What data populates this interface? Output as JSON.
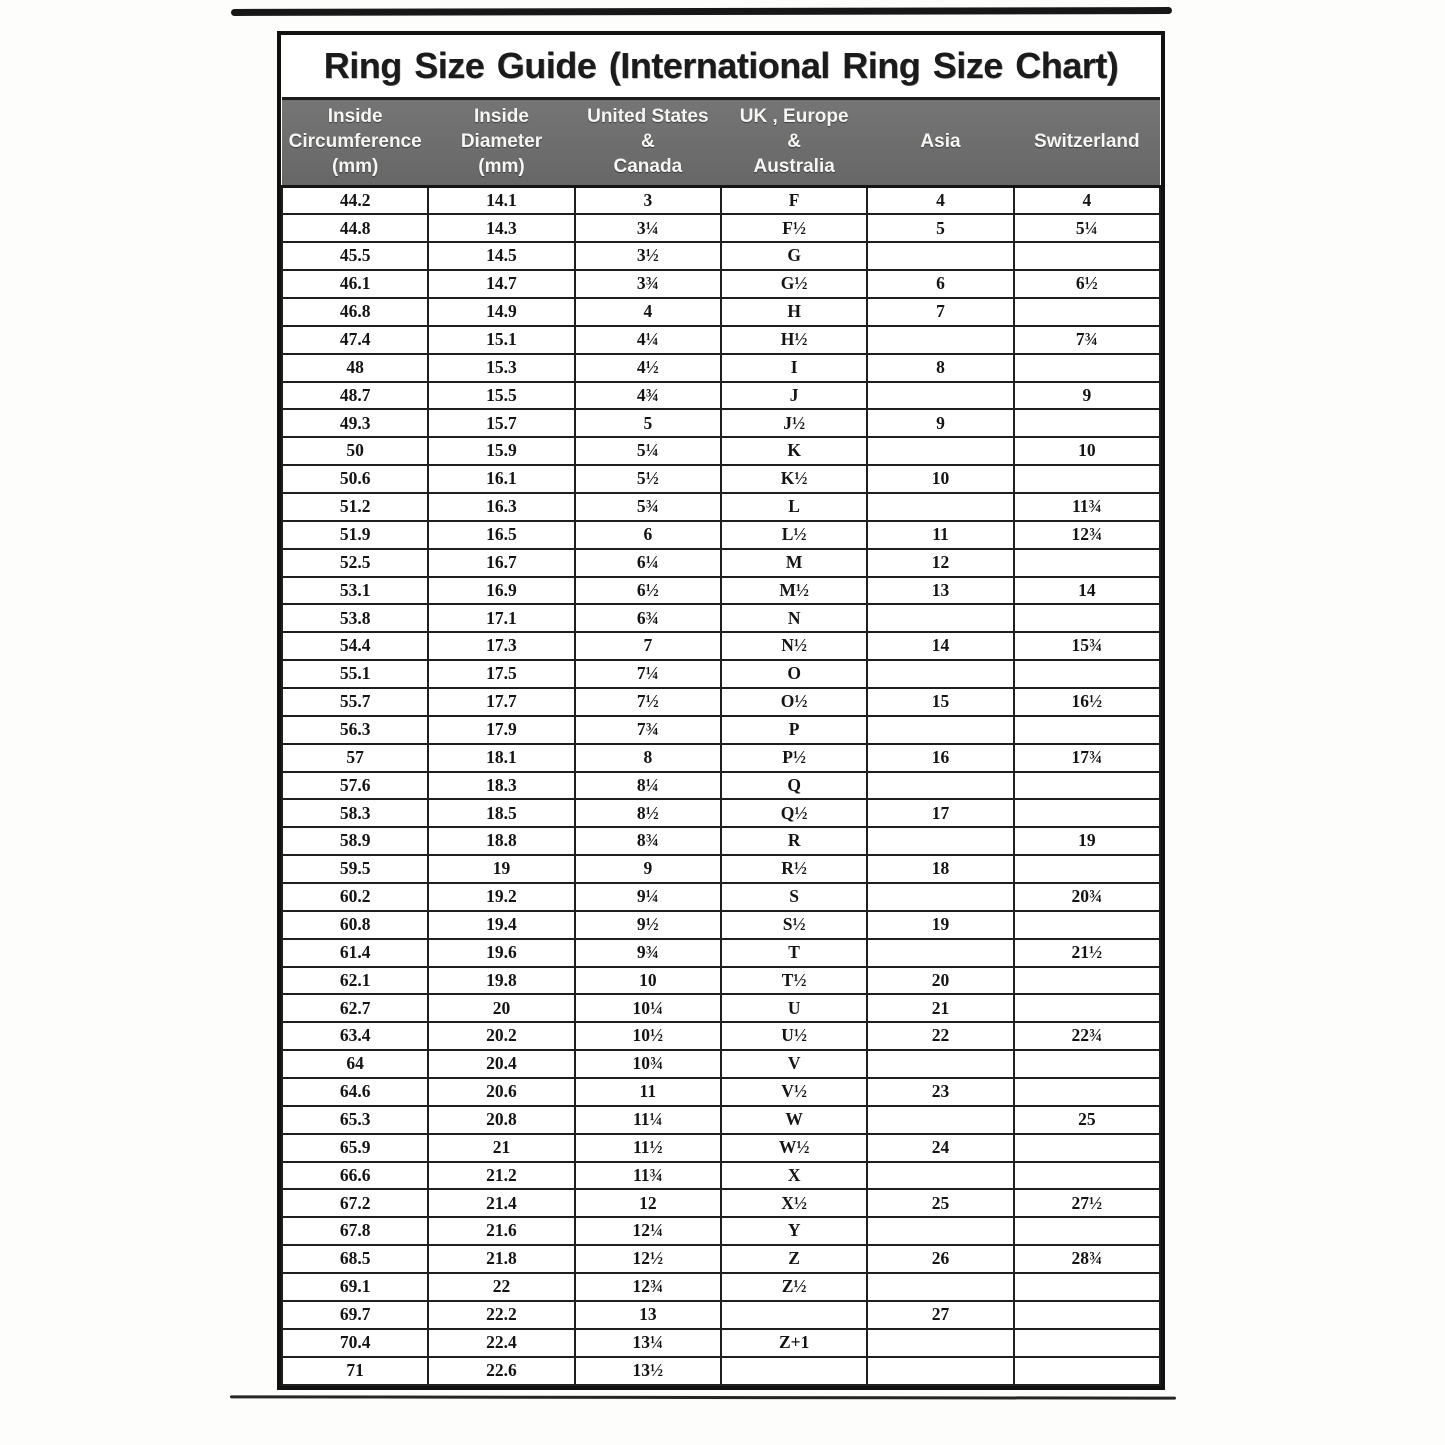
{
  "chart_data": {
    "type": "table",
    "title": "Ring Size Guide (International Ring Size Chart)",
    "columns": [
      "Inside\nCircumference\n(mm)",
      "Inside\nDiameter\n(mm)",
      "United States\n&\nCanada",
      "UK , Europe\n&\nAustralia",
      "Asia",
      "Switzerland"
    ],
    "rows": [
      [
        "44.2",
        "14.1",
        "3",
        "F",
        "4",
        "4"
      ],
      [
        "44.8",
        "14.3",
        "3¼",
        "F½",
        "5",
        "5¼"
      ],
      [
        "45.5",
        "14.5",
        "3½",
        "G",
        "",
        ""
      ],
      [
        "46.1",
        "14.7",
        "3¾",
        "G½",
        "6",
        "6½"
      ],
      [
        "46.8",
        "14.9",
        "4",
        "H",
        "7",
        ""
      ],
      [
        "47.4",
        "15.1",
        "4¼",
        "H½",
        "",
        "7¾"
      ],
      [
        "48",
        "15.3",
        "4½",
        "I",
        "8",
        ""
      ],
      [
        "48.7",
        "15.5",
        "4¾",
        "J",
        "",
        "9"
      ],
      [
        "49.3",
        "15.7",
        "5",
        "J½",
        "9",
        ""
      ],
      [
        "50",
        "15.9",
        "5¼",
        "K",
        "",
        "10"
      ],
      [
        "50.6",
        "16.1",
        "5½",
        "K½",
        "10",
        ""
      ],
      [
        "51.2",
        "16.3",
        "5¾",
        "L",
        "",
        "11¾"
      ],
      [
        "51.9",
        "16.5",
        "6",
        "L½",
        "11",
        "12¾"
      ],
      [
        "52.5",
        "16.7",
        "6¼",
        "M",
        "12",
        ""
      ],
      [
        "53.1",
        "16.9",
        "6½",
        "M½",
        "13",
        "14"
      ],
      [
        "53.8",
        "17.1",
        "6¾",
        "N",
        "",
        ""
      ],
      [
        "54.4",
        "17.3",
        "7",
        "N½",
        "14",
        "15¾"
      ],
      [
        "55.1",
        "17.5",
        "7¼",
        "O",
        "",
        ""
      ],
      [
        "55.7",
        "17.7",
        "7½",
        "O½",
        "15",
        "16½"
      ],
      [
        "56.3",
        "17.9",
        "7¾",
        "P",
        "",
        ""
      ],
      [
        "57",
        "18.1",
        "8",
        "P½",
        "16",
        "17¾"
      ],
      [
        "57.6",
        "18.3",
        "8¼",
        "Q",
        "",
        ""
      ],
      [
        "58.3",
        "18.5",
        "8½",
        "Q½",
        "17",
        ""
      ],
      [
        "58.9",
        "18.8",
        "8¾",
        "R",
        "",
        "19"
      ],
      [
        "59.5",
        "19",
        "9",
        "R½",
        "18",
        ""
      ],
      [
        "60.2",
        "19.2",
        "9¼",
        "S",
        "",
        "20¾"
      ],
      [
        "60.8",
        "19.4",
        "9½",
        "S½",
        "19",
        ""
      ],
      [
        "61.4",
        "19.6",
        "9¾",
        "T",
        "",
        "21½"
      ],
      [
        "62.1",
        "19.8",
        "10",
        "T½",
        "20",
        ""
      ],
      [
        "62.7",
        "20",
        "10¼",
        "U",
        "21",
        ""
      ],
      [
        "63.4",
        "20.2",
        "10½",
        "U½",
        "22",
        "22¾"
      ],
      [
        "64",
        "20.4",
        "10¾",
        "V",
        "",
        ""
      ],
      [
        "64.6",
        "20.6",
        "11",
        "V½",
        "23",
        ""
      ],
      [
        "65.3",
        "20.8",
        "11¼",
        "W",
        "",
        "25"
      ],
      [
        "65.9",
        "21",
        "11½",
        "W½",
        "24",
        ""
      ],
      [
        "66.6",
        "21.2",
        "11¾",
        "X",
        "",
        ""
      ],
      [
        "67.2",
        "21.4",
        "12",
        "X½",
        "25",
        "27½"
      ],
      [
        "67.8",
        "21.6",
        "12¼",
        "Y",
        "",
        ""
      ],
      [
        "68.5",
        "21.8",
        "12½",
        "Z",
        "26",
        "28¾"
      ],
      [
        "69.1",
        "22",
        "12¾",
        "Z½",
        "",
        ""
      ],
      [
        "69.7",
        "22.2",
        "13",
        "",
        "27",
        ""
      ],
      [
        "70.4",
        "22.4",
        "13¼",
        "Z+1",
        "",
        ""
      ],
      [
        "71",
        "22.6",
        "13½",
        "",
        "",
        ""
      ]
    ]
  },
  "colors": {
    "header_band": "#6d6d6d",
    "header_text": "#f6f6f4",
    "border": "#1e1e1e",
    "text": "#141414",
    "background": "#ffffff"
  }
}
